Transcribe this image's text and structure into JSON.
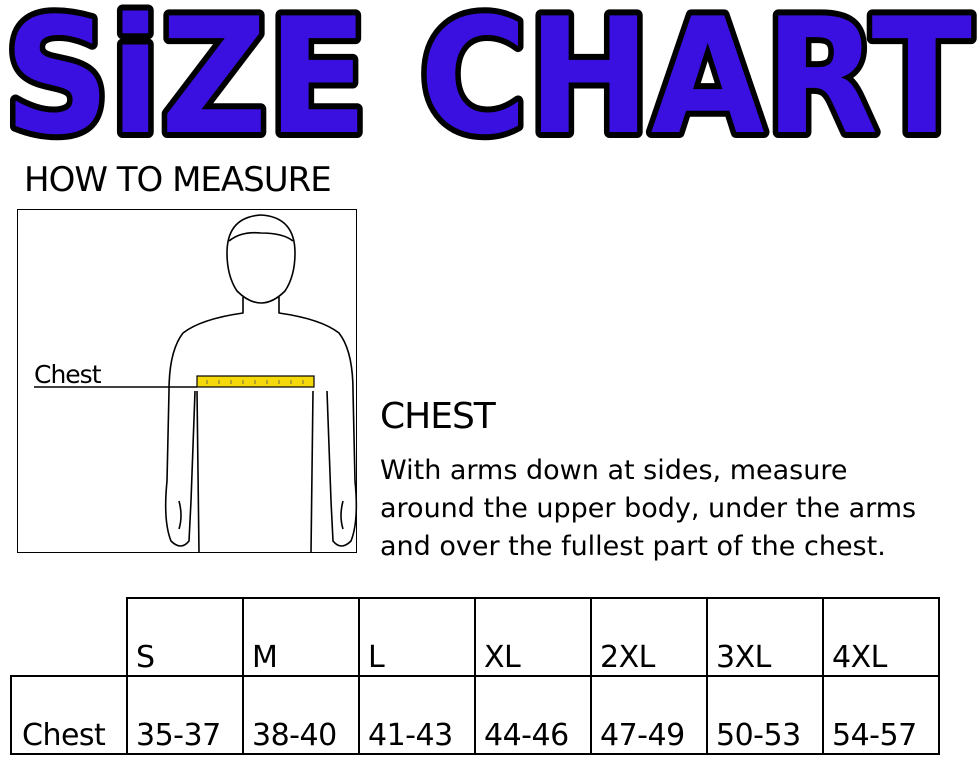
{
  "title": "SiZE CHART",
  "title_color": "#3a10e0",
  "how_to_measure": "HOW TO MEASURE",
  "figure": {
    "chest_label": "Chest",
    "tape_color": "#f5d90a"
  },
  "measure": {
    "heading": "CHEST",
    "lines": [
      "With arms down at sides, measure",
      "around the upper body, under the arms",
      "and over the fullest part of the chest."
    ]
  },
  "size_table": {
    "sizes": [
      "S",
      "M",
      "L",
      "XL",
      "2XL",
      "3XL",
      "4XL"
    ],
    "row_label": "Chest",
    "values": [
      "35-37",
      "38-40",
      "41-43",
      "44-46",
      "47-49",
      "50-53",
      "54-57"
    ]
  }
}
